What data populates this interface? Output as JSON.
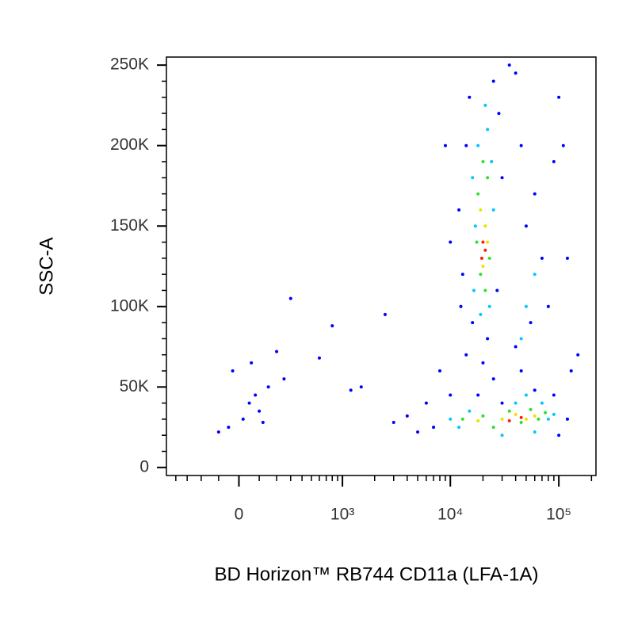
{
  "chart_data": {
    "type": "scatter",
    "xlabel": "BD Horizon™ RB744 CD11a (LFA-1A)",
    "ylabel": "SSC-A",
    "xscale": "biexponential",
    "xlim": [
      -500,
      220000
    ],
    "ylim": [
      -5000,
      255000
    ],
    "xticks": [
      0,
      {
        "value": 1000,
        "label": "10³"
      },
      {
        "value": 10000,
        "label": "10⁴"
      },
      {
        "value": 100000,
        "label": "10⁵"
      }
    ],
    "xminorticks": [
      -400,
      -300,
      -200,
      -100,
      100,
      200,
      300,
      400,
      500,
      600,
      700,
      800,
      900,
      2000,
      3000,
      4000,
      5000,
      6000,
      7000,
      8000,
      9000,
      20000,
      30000,
      40000,
      50000,
      60000,
      70000,
      80000,
      90000,
      200000
    ],
    "yticks": [
      0,
      {
        "value": 50000,
        "label": "50K"
      },
      {
        "value": 100000,
        "label": "100K"
      },
      {
        "value": 150000,
        "label": "150K"
      },
      {
        "value": 200000,
        "label": "200K"
      },
      {
        "value": 250000,
        "label": "250K"
      }
    ],
    "yminorticks": [
      10000,
      20000,
      30000,
      40000,
      60000,
      70000,
      80000,
      90000,
      110000,
      120000,
      130000,
      140000,
      160000,
      170000,
      180000,
      190000,
      210000,
      220000,
      230000,
      240000
    ],
    "series": [
      {
        "color": "#0000ff",
        "x": [
          -100,
          -50,
          20,
          50,
          80,
          100,
          120,
          150,
          -30,
          200,
          250,
          60,
          300,
          800,
          1200,
          600,
          2500,
          1500,
          12000,
          14000,
          15000,
          25000,
          28000,
          30000,
          13000,
          12500,
          27000,
          16000,
          22000,
          10000,
          9000,
          35000,
          40000,
          45000,
          50000,
          60000,
          70000,
          80000,
          55000,
          40000,
          45000,
          90000,
          100000,
          110000,
          120000,
          150000,
          130000,
          8000,
          10000,
          6000,
          4000,
          3000,
          5000,
          7000,
          100000,
          120000,
          90000,
          60000,
          25000,
          20000,
          14000,
          18000,
          30000
        ],
        "y": [
          22000,
          25000,
          30000,
          40000,
          45000,
          35000,
          28000,
          50000,
          60000,
          72000,
          55000,
          65000,
          105000,
          88000,
          48000,
          68000,
          95000,
          50000,
          160000,
          200000,
          230000,
          240000,
          220000,
          180000,
          120000,
          100000,
          110000,
          90000,
          80000,
          140000,
          200000,
          250000,
          245000,
          200000,
          150000,
          170000,
          130000,
          100000,
          90000,
          75000,
          60000,
          190000,
          230000,
          200000,
          130000,
          70000,
          60000,
          60000,
          45000,
          40000,
          32000,
          28000,
          22000,
          25000,
          20000,
          30000,
          45000,
          48000,
          55000,
          65000,
          70000,
          45000,
          40000
        ]
      },
      {
        "color": "#00c8ff",
        "x": [
          16000,
          18000,
          22000,
          24000,
          17000,
          25000,
          16500,
          23000,
          19000,
          21000,
          10000,
          12000,
          15000,
          40000,
          60000,
          80000,
          70000,
          30000,
          50000,
          90000,
          50000,
          45000,
          60000
        ],
        "y": [
          180000,
          200000,
          210000,
          190000,
          150000,
          160000,
          110000,
          100000,
          95000,
          225000,
          30000,
          25000,
          35000,
          40000,
          22000,
          30000,
          40000,
          20000,
          45000,
          33000,
          100000,
          80000,
          120000
        ]
      },
      {
        "color": "#30e030",
        "x": [
          18000,
          22000,
          20000,
          19000,
          23000,
          17500,
          21000,
          20000,
          25000,
          35000,
          45000,
          55000,
          65000,
          13000,
          75000
        ],
        "y": [
          170000,
          180000,
          190000,
          120000,
          130000,
          140000,
          110000,
          32000,
          25000,
          35000,
          28000,
          36000,
          30000,
          30000,
          34000
        ]
      },
      {
        "color": "#f0e000",
        "x": [
          19000,
          21000,
          20000,
          22000,
          30000,
          40000,
          50000,
          60000,
          18000
        ],
        "y": [
          160000,
          150000,
          125000,
          140000,
          30000,
          33000,
          30000,
          32000,
          29000
        ]
      },
      {
        "color": "#ff2000",
        "x": [
          20000,
          19500,
          21000,
          35000,
          45000
        ],
        "y": [
          140000,
          130000,
          135000,
          29000,
          31000
        ]
      }
    ]
  }
}
